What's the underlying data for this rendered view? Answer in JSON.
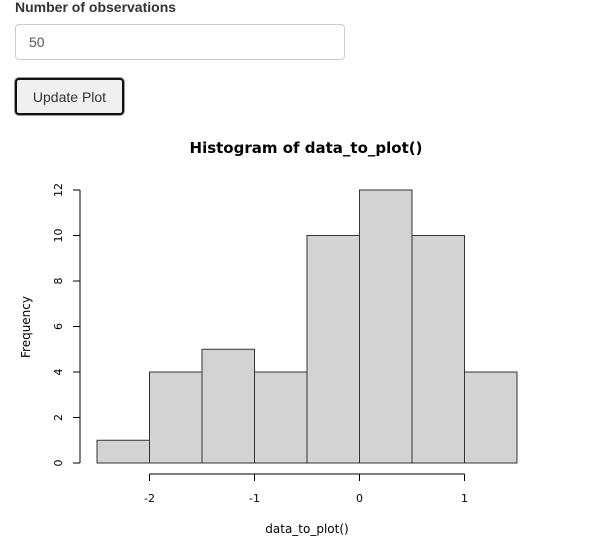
{
  "form": {
    "label": "Number of observations",
    "value": "50",
    "button_label": "Update Plot"
  },
  "chart_data": {
    "type": "bar",
    "title": "Histogram of data_to_plot()",
    "xlabel": "data_to_plot()",
    "ylabel": "Frequency",
    "bins": [
      {
        "start": -2.5,
        "end": -2.0,
        "count": 1
      },
      {
        "start": -2.0,
        "end": -1.5,
        "count": 4
      },
      {
        "start": -1.5,
        "end": -1.0,
        "count": 5
      },
      {
        "start": -1.0,
        "end": -0.5,
        "count": 4
      },
      {
        "start": -0.5,
        "end": 0.0,
        "count": 10
      },
      {
        "start": 0.0,
        "end": 0.5,
        "count": 12
      },
      {
        "start": 0.5,
        "end": 1.0,
        "count": 10
      },
      {
        "start": 1.0,
        "end": 1.5,
        "count": 4
      }
    ],
    "x_ticks": [
      "-2",
      "-1",
      "0",
      "1"
    ],
    "x_tick_values": [
      -2,
      -1,
      0,
      1
    ],
    "y_ticks": [
      "0",
      "2",
      "4",
      "6",
      "8",
      "10",
      "12"
    ],
    "y_tick_values": [
      0,
      2,
      4,
      6,
      8,
      10,
      12
    ],
    "xlim": [
      -2.5,
      1.5
    ],
    "ylim": [
      0,
      12
    ],
    "bar_fill": "#d3d3d3",
    "bar_stroke": "#333333",
    "grid": false
  }
}
